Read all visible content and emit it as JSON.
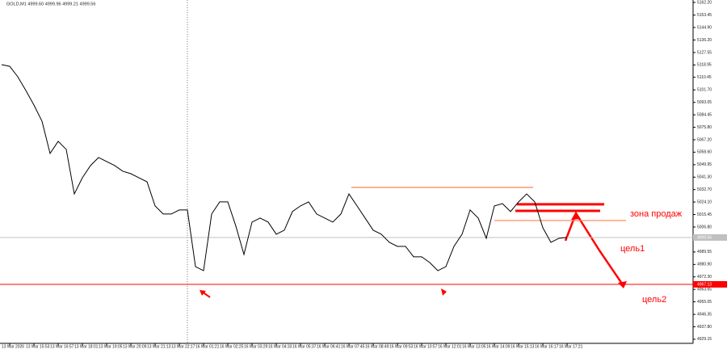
{
  "chart_data": {
    "type": "line",
    "title": "GOLD,M1 4999.60 4999.96 4999.21 4999.56",
    "categories": [
      null,
      "13 Mar 2026",
      null,
      null,
      "13 Mar 15:53",
      null,
      null,
      "13 Mar 16:57",
      null,
      null,
      "13 Mar 18:01",
      null,
      null,
      "13 Mar 19:05",
      null,
      null,
      "13 Mar 20:09",
      null,
      null,
      "13 Mar 21:13",
      null,
      null,
      "13 Mar 22:17",
      null,
      null,
      "16 Mar 01:21",
      null,
      null,
      "16 Mar 02:25",
      null,
      null,
      "16 Mar 03:29",
      null,
      null,
      "16 Mar 04:33",
      null,
      null,
      "16 Mar 05:37",
      null,
      null,
      "16 Mar 06:41",
      null,
      null,
      "16 Mar 07:45",
      null,
      null,
      "16 Mar 08:49",
      null,
      null,
      "16 Mar 09:53",
      null,
      null,
      "16 Mar 10:57",
      null,
      null,
      "16 Mar 12:01",
      null,
      null,
      "16 Mar 13:05",
      null,
      null,
      "16 Mar 14:09",
      null,
      null,
      "16 Mar 15:13",
      null,
      null,
      "16 Mar 16:17",
      null,
      null,
      "16 Mar 17:21"
    ],
    "series": [
      {
        "name": "GOLD",
        "color": "#000000",
        "values": [
          5119.2,
          5118.0,
          5110.8,
          5101.3,
          5091.2,
          5080.0,
          5057.7,
          5066.1,
          5060.5,
          5029.7,
          5040.9,
          5049.3,
          5054.9,
          5052.1,
          5049.3,
          5045.4,
          5043.7,
          5040.9,
          5038.1,
          5021.4,
          5015.8,
          5015.8,
          5018.6,
          5018.6,
          4979.4,
          4976.6,
          5015.8,
          5024.2,
          5024.2,
          5007.4,
          4987.8,
          5010.2,
          5013.0,
          5010.2,
          5001.8,
          5004.6,
          5017.5,
          5021.4,
          5024.2,
          5015.8,
          5013.0,
          5010.2,
          5015.8,
          5029.7,
          5021.4,
          5013.0,
          5004.6,
          5001.8,
          4996.2,
          4993.4,
          4993.4,
          4986.2,
          4986.2,
          4982.2,
          4976.6,
          4979.4,
          4993.4,
          5001.8,
          5018.6,
          5013.0,
          4999.0,
          5021.4,
          5023.0,
          5017.5,
          5024.2,
          5029.7,
          5024.2,
          5006.3,
          4996.2,
          4999.0,
          4999.6
        ]
      }
    ],
    "ylim": [
      4926.3,
      5163.9
    ],
    "yticks": [
      {
        "value": 5162.2,
        "label": "5162.20"
      },
      5153.45,
      {
        "value": 5144.9,
        "label": "5144.90"
      },
      {
        "value": 5136.2,
        "label": "5136.20"
      },
      5127.55,
      5118.95,
      5110.45,
      {
        "value": 5101.7,
        "label": "5101.70"
      },
      5093.05,
      5084.45,
      {
        "value": 5075.8,
        "label": "5075.80"
      },
      {
        "value": 5067.2,
        "label": "5067.20"
      },
      {
        "value": 5058.6,
        "label": "5058.60"
      },
      5049.95,
      {
        "value": 5041.3,
        "label": "5041.30"
      },
      {
        "value": 5032.7,
        "label": "5032.70"
      },
      {
        "value": 5024.1,
        "label": "5024.10"
      },
      5015.45,
      {
        "value": 5006.8,
        "label": "5006.80"
      },
      4989.55,
      {
        "value": 4980.9,
        "label": "4980.90"
      },
      {
        "value": 4972.3,
        "label": "4972.30"
      },
      4963.65,
      4955.05,
      4946.35,
      {
        "value": 4937.8,
        "label": "4937.80"
      },
      4929.15
    ],
    "price_lines": [
      {
        "value": 4999.56,
        "color": "#c0c0c0"
      },
      {
        "value": 4967.13,
        "color": "#ff0000"
      }
    ],
    "levels": [
      {
        "value": 5034.2,
        "color": "#ff7f50"
      },
      {
        "value": 5011.3,
        "color": "#ff7f50"
      },
      {
        "value": 5022.5,
        "color": "#ff0000"
      },
      {
        "value": 5018.0,
        "color": "#ff0000"
      }
    ],
    "annotations": [
      "зона продаж",
      "цель1",
      "цель2"
    ]
  }
}
